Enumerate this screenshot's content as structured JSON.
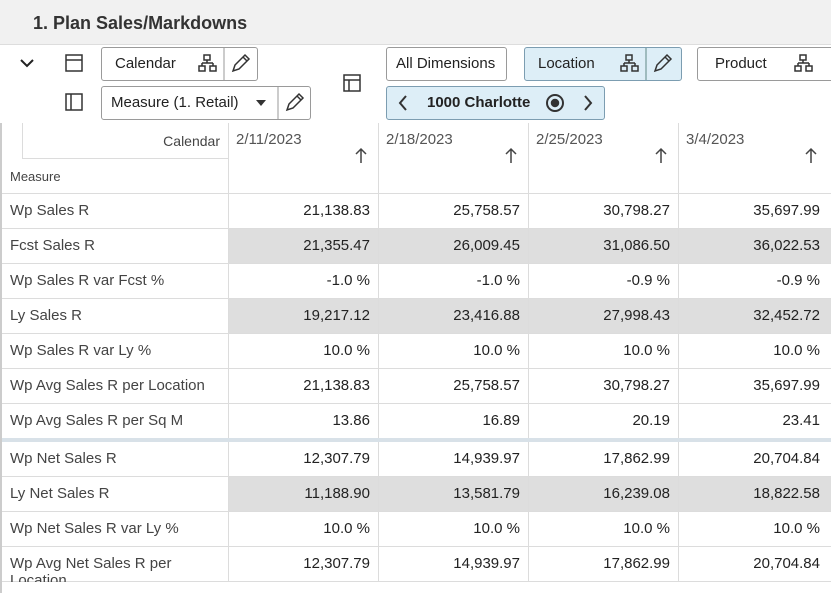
{
  "header": {
    "title": "1. Plan Sales/Markdowns"
  },
  "toolbar": {
    "calendar": "Calendar",
    "measure": "Measure (1. Retail)",
    "all_dimensions": "All Dimensions",
    "location": "Location",
    "location_value": "1000 Charlotte",
    "product": "Product"
  },
  "table": {
    "corner_top": "Calendar",
    "corner_bottom": "Measure",
    "columns": [
      "2/11/2023",
      "2/18/2023",
      "2/25/2023",
      "3/4/2023"
    ],
    "groups": [
      {
        "rows": [
          {
            "label": "Wp Sales R",
            "shaded": false,
            "cells": [
              "21,138.83",
              "25,758.57",
              "30,798.27",
              "35,697.99"
            ]
          },
          {
            "label": "Fcst Sales R",
            "shaded": true,
            "cells": [
              "21,355.47",
              "26,009.45",
              "31,086.50",
              "36,022.53"
            ]
          },
          {
            "label": "Wp Sales R var Fcst %",
            "shaded": false,
            "cells": [
              "-1.0 %",
              "-1.0 %",
              "-0.9 %",
              "-0.9 %"
            ]
          },
          {
            "label": "Ly Sales R",
            "shaded": true,
            "cells": [
              "19,217.12",
              "23,416.88",
              "27,998.43",
              "32,452.72"
            ]
          },
          {
            "label": "Wp Sales R var Ly %",
            "shaded": false,
            "cells": [
              "10.0 %",
              "10.0 %",
              "10.0 %",
              "10.0 %"
            ]
          },
          {
            "label": "Wp Avg Sales R per Location",
            "shaded": false,
            "cells": [
              "21,138.83",
              "25,758.57",
              "30,798.27",
              "35,697.99"
            ]
          },
          {
            "label": "Wp Avg Sales R per Sq M",
            "shaded": false,
            "cells": [
              "13.86",
              "16.89",
              "20.19",
              "23.41"
            ]
          }
        ]
      },
      {
        "rows": [
          {
            "label": "Wp Net Sales R",
            "shaded": false,
            "cells": [
              "12,307.79",
              "14,939.97",
              "17,862.99",
              "20,704.84"
            ]
          },
          {
            "label": "Ly Net Sales R",
            "shaded": true,
            "cells": [
              "11,188.90",
              "13,581.79",
              "16,239.08",
              "18,822.58"
            ]
          },
          {
            "label": "Wp Net Sales R var Ly %",
            "shaded": false,
            "cells": [
              "10.0 %",
              "10.0 %",
              "10.0 %",
              "10.0 %"
            ]
          },
          {
            "label": "Wp Avg Net Sales R per Location",
            "shaded": false,
            "cells": [
              "12,307.79",
              "14,939.97",
              "17,862.99",
              "20,704.84"
            ]
          }
        ]
      }
    ]
  }
}
